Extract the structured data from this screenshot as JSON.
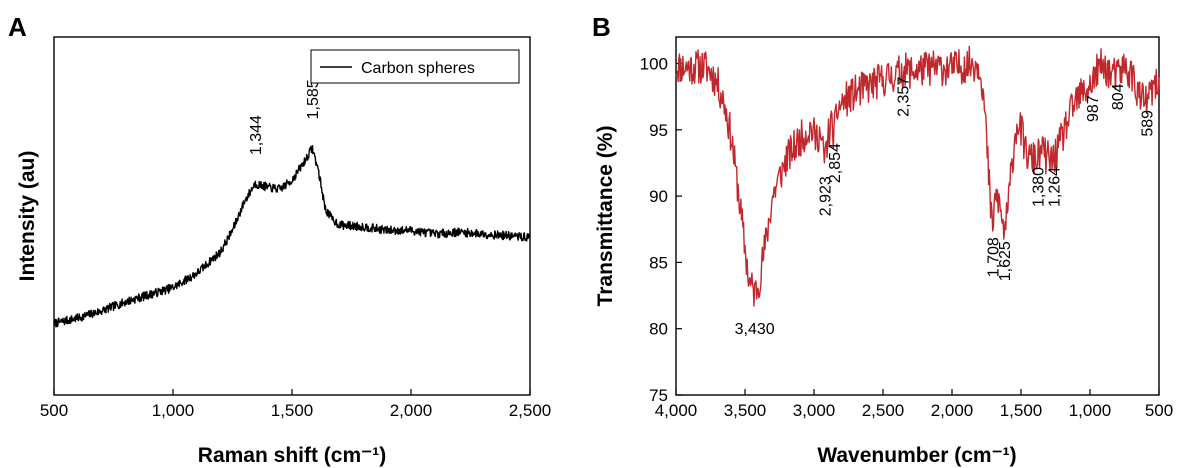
{
  "chart_data": [
    {
      "panel": "A",
      "type": "line",
      "xlabel": "Raman shift (cm⁻¹)",
      "ylabel": "Intensity (au)",
      "xlim": [
        500,
        2500
      ],
      "ylim": [
        0,
        1
      ],
      "xticks": [
        500,
        1000,
        1500,
        2000,
        2500
      ],
      "xtick_labels": [
        "500",
        "1,000",
        "1,500",
        "2,000",
        "2,500"
      ],
      "show_y_tick_labels": false,
      "legend_position": "top-right",
      "series": [
        {
          "name": "Carbon spheres",
          "color": "#000000",
          "noise": 0.012,
          "x": [
            500,
            600,
            700,
            800,
            900,
            1000,
            1100,
            1200,
            1250,
            1300,
            1344,
            1400,
            1450,
            1500,
            1550,
            1585,
            1610,
            1640,
            1670,
            1700,
            1800,
            1900,
            2000,
            2100,
            2200,
            2300,
            2400,
            2500
          ],
          "y": [
            0.2,
            0.215,
            0.235,
            0.26,
            0.28,
            0.3,
            0.34,
            0.4,
            0.46,
            0.54,
            0.59,
            0.58,
            0.575,
            0.6,
            0.65,
            0.69,
            0.63,
            0.52,
            0.49,
            0.475,
            0.47,
            0.46,
            0.46,
            0.45,
            0.455,
            0.45,
            0.445,
            0.44
          ]
        }
      ],
      "annotations": [
        {
          "text": "1,344",
          "x": 1344,
          "y": 0.67
        },
        {
          "text": "1,585",
          "x": 1585,
          "y": 0.77
        }
      ]
    },
    {
      "panel": "B",
      "type": "line",
      "xlabel": "Wavenumber (cm⁻¹)",
      "ylabel": "Transmittance (%)",
      "xlim": [
        4000,
        500
      ],
      "ylim": [
        75,
        102
      ],
      "xticks": [
        4000,
        3500,
        3000,
        2500,
        2000,
        1500,
        1000,
        500
      ],
      "xtick_labels": [
        "4,000",
        "3,500",
        "3,000",
        "2,500",
        "2,000",
        "1,500",
        "1,000",
        "500"
      ],
      "yticks": [
        75,
        80,
        85,
        90,
        95,
        100
      ],
      "ytick_labels": [
        "75",
        "80",
        "85",
        "90",
        "95",
        "100"
      ],
      "series": [
        {
          "color": "#c0282c",
          "noise": 0.05,
          "x": [
            4000,
            3900,
            3800,
            3750,
            3700,
            3650,
            3600,
            3550,
            3500,
            3470,
            3430,
            3400,
            3350,
            3300,
            3200,
            3100,
            3020,
            2990,
            2960,
            2923,
            2900,
            2880,
            2854,
            2830,
            2800,
            2700,
            2600,
            2500,
            2400,
            2357,
            2300,
            2200,
            2100,
            2000,
            1900,
            1850,
            1800,
            1780,
            1760,
            1740,
            1720,
            1708,
            1690,
            1670,
            1650,
            1625,
            1600,
            1560,
            1530,
            1500,
            1470,
            1440,
            1410,
            1380,
            1350,
            1320,
            1290,
            1264,
            1230,
            1200,
            1150,
            1100,
            1050,
            1000,
            987,
            960,
            920,
            880,
            850,
            820,
            804,
            780,
            760,
            740,
            720,
            700,
            680,
            660,
            630,
            610,
            589,
            570,
            550,
            530,
            500
          ],
          "y": [
            99.8,
            99.7,
            99.8,
            99.4,
            98.5,
            97,
            94.5,
            90.5,
            86,
            83.5,
            82.7,
            83.5,
            86.5,
            90,
            92.8,
            94.3,
            95.2,
            94.3,
            94.8,
            92.7,
            94.3,
            95.5,
            94.7,
            96.5,
            97,
            97.8,
            98.3,
            98.8,
            99.2,
            99.5,
            99.4,
            99.6,
            99.7,
            99.6,
            99.9,
            100,
            99.9,
            98.5,
            96,
            92.5,
            89,
            87.6,
            89.5,
            90,
            89,
            87.3,
            88.5,
            93,
            95.6,
            95,
            93.5,
            92.8,
            92.8,
            92.9,
            93.5,
            93,
            92.7,
            92.8,
            93.5,
            94.5,
            96,
            97.2,
            97.8,
            98.3,
            98.5,
            99.2,
            99.8,
            99.6,
            99.2,
            99.1,
            99,
            99.4,
            99.7,
            99.5,
            99.4,
            99.2,
            98.8,
            98,
            97.3,
            97.2,
            97.1,
            97.5,
            98,
            98.2,
            98.2
          ]
        }
      ],
      "annotations": [
        {
          "text": "3,430",
          "x": 3430,
          "y": 80.5,
          "rotate": false
        },
        {
          "text": "2,923",
          "x": 2923,
          "y": 91.5,
          "rotate": true
        },
        {
          "text": "2,854",
          "x": 2854,
          "y": 94.0,
          "rotate": true
        },
        {
          "text": "2,357",
          "x": 2357,
          "y": 99.0,
          "rotate": true
        },
        {
          "text": "1,708",
          "x": 1708,
          "y": 86.9,
          "rotate": true
        },
        {
          "text": "1,625",
          "x": 1625,
          "y": 86.6,
          "rotate": true
        },
        {
          "text": "1,380",
          "x": 1380,
          "y": 92.2,
          "rotate": true
        },
        {
          "text": "1,264",
          "x": 1264,
          "y": 92.2,
          "rotate": true
        },
        {
          "text": "987",
          "x": 987,
          "y": 97.6,
          "rotate": true
        },
        {
          "text": "804",
          "x": 804,
          "y": 98.5,
          "rotate": true
        },
        {
          "text": "589",
          "x": 589,
          "y": 96.5,
          "rotate": true
        }
      ]
    }
  ]
}
